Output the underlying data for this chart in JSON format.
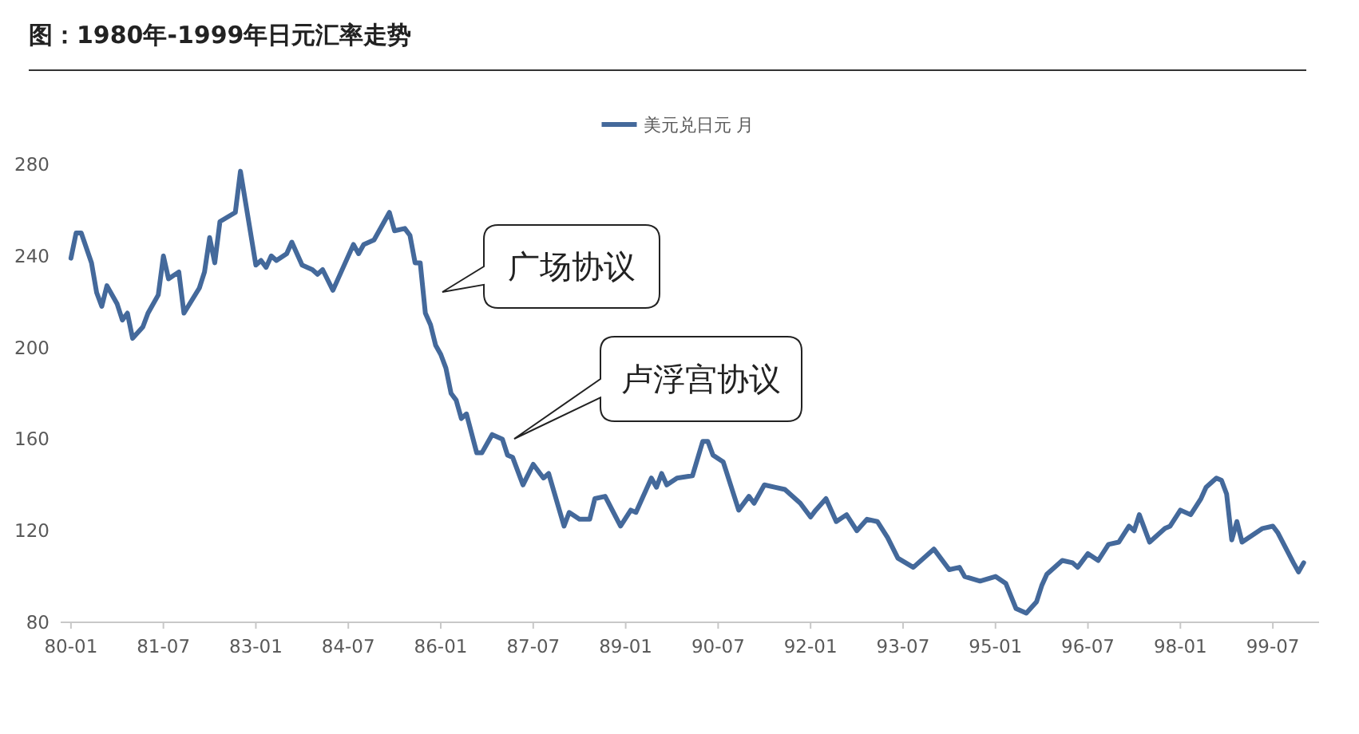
{
  "chart_data": {
    "type": "line",
    "title": "图：1980年-1999年日元汇率走势",
    "x": [
      "1980-01",
      "1980-02",
      "1980-03",
      "1980-05",
      "1980-06",
      "1980-07",
      "1980-08",
      "1980-10",
      "1980-11",
      "1980-12",
      "1981-01",
      "1981-03",
      "1981-04",
      "1981-06",
      "1981-07",
      "1981-08",
      "1981-10",
      "1981-11",
      "1982-02",
      "1982-03",
      "1982-04",
      "1982-05",
      "1982-06",
      "1982-09",
      "1982-10",
      "1983-01",
      "1983-02",
      "1983-03",
      "1983-04",
      "1983-05",
      "1983-07",
      "1983-08",
      "1983-10",
      "1983-12",
      "1984-01",
      "1984-02",
      "1984-04",
      "1984-06",
      "1984-08",
      "1984-09",
      "1984-10",
      "1984-12",
      "1985-03",
      "1985-04",
      "1985-06",
      "1985-07",
      "1985-08",
      "1985-09",
      "1985-10",
      "1985-11",
      "1985-12",
      "1986-01",
      "1986-02",
      "1986-03",
      "1986-04",
      "1986-05",
      "1986-06",
      "1986-08",
      "1986-09",
      "1986-11",
      "1987-01",
      "1987-02",
      "1987-03",
      "1987-05",
      "1987-07",
      "1987-09",
      "1987-10",
      "1988-01",
      "1988-02",
      "1988-04",
      "1988-06",
      "1988-07",
      "1988-09",
      "1988-12",
      "1989-02",
      "1989-03",
      "1989-06",
      "1989-07",
      "1989-08",
      "1989-09",
      "1989-11",
      "1990-02",
      "1990-04",
      "1990-05",
      "1990-06",
      "1990-08",
      "1990-11",
      "1991-01",
      "1991-02",
      "1991-04",
      "1991-06",
      "1991-08",
      "1991-11",
      "1992-01",
      "1992-02",
      "1992-04",
      "1992-06",
      "1992-08",
      "1992-10",
      "1992-12",
      "1993-02",
      "1993-04",
      "1993-06",
      "1993-09",
      "1994-01",
      "1994-04",
      "1994-06",
      "1994-07",
      "1994-10",
      "1995-01",
      "1995-03",
      "1995-05",
      "1995-07",
      "1995-09",
      "1995-10",
      "1995-11",
      "1996-02",
      "1996-04",
      "1996-05",
      "1996-07",
      "1996-09",
      "1996-11",
      "1997-01",
      "1997-03",
      "1997-04",
      "1997-05",
      "1997-07",
      "1997-10",
      "1997-11",
      "1998-01",
      "1998-03",
      "1998-05",
      "1998-06",
      "1998-08",
      "1998-09",
      "1998-10",
      "1998-11",
      "1998-12",
      "1999-01",
      "1999-05",
      "1999-07",
      "1999-08",
      "1999-11",
      "1999-12",
      "2000-01"
    ],
    "series": [
      {
        "name": "美元兑日元 月",
        "color": "#44699b",
        "values": [
          239,
          250,
          250,
          237,
          224,
          218,
          227,
          219,
          212,
          215,
          204,
          209,
          215,
          223,
          240,
          230,
          233,
          215,
          226,
          233,
          248,
          237,
          255,
          259,
          277,
          236,
          238,
          235,
          240,
          238,
          241,
          246,
          236,
          234,
          232,
          234,
          225,
          235,
          245,
          241,
          245,
          247,
          259,
          251,
          252,
          249,
          237,
          237,
          215,
          210,
          201,
          197,
          191,
          180,
          177,
          169,
          171,
          154,
          154,
          162,
          160,
          153,
          152,
          140,
          149,
          143,
          145,
          122,
          128,
          125,
          125,
          134,
          135,
          122,
          129,
          128,
          143,
          139,
          145,
          140,
          143,
          144,
          159,
          159,
          153,
          150,
          129,
          135,
          132,
          140,
          139,
          138,
          132,
          126,
          129,
          134,
          124,
          127,
          120,
          125,
          124,
          117,
          108,
          104,
          112,
          103,
          104,
          100,
          98,
          100,
          97,
          86,
          84,
          89,
          96,
          101,
          107,
          106,
          104,
          110,
          107,
          114,
          115,
          122,
          120,
          127,
          115,
          121,
          122,
          129,
          127,
          134,
          139,
          143,
          142,
          136,
          116,
          124,
          115,
          121,
          122,
          119,
          106,
          102,
          106
        ]
      }
    ],
    "xlim": [
      "1979-11",
      "2000-04"
    ],
    "xticks": [
      {
        "value": "1980-01",
        "label": "80-01"
      },
      {
        "value": "1981-07",
        "label": "81-07"
      },
      {
        "value": "1983-01",
        "label": "83-01"
      },
      {
        "value": "1984-07",
        "label": "84-07"
      },
      {
        "value": "1986-01",
        "label": "86-01"
      },
      {
        "value": "1987-07",
        "label": "87-07"
      },
      {
        "value": "1989-01",
        "label": "89-01"
      },
      {
        "value": "1990-07",
        "label": "90-07"
      },
      {
        "value": "1992-01",
        "label": "92-01"
      },
      {
        "value": "1993-07",
        "label": "93-07"
      },
      {
        "value": "1995-01",
        "label": "95-01"
      },
      {
        "value": "1996-07",
        "label": "96-07"
      },
      {
        "value": "1998-01",
        "label": "98-01"
      },
      {
        "value": "1999-07",
        "label": "99-07"
      }
    ],
    "ylim": [
      80,
      280
    ],
    "yticks": [
      80,
      120,
      160,
      200,
      240,
      280
    ],
    "grid": false,
    "legend": "top",
    "line_style": "solid",
    "marker": "none",
    "annotations": [
      "广场协议",
      "卢浮宫协议"
    ]
  }
}
